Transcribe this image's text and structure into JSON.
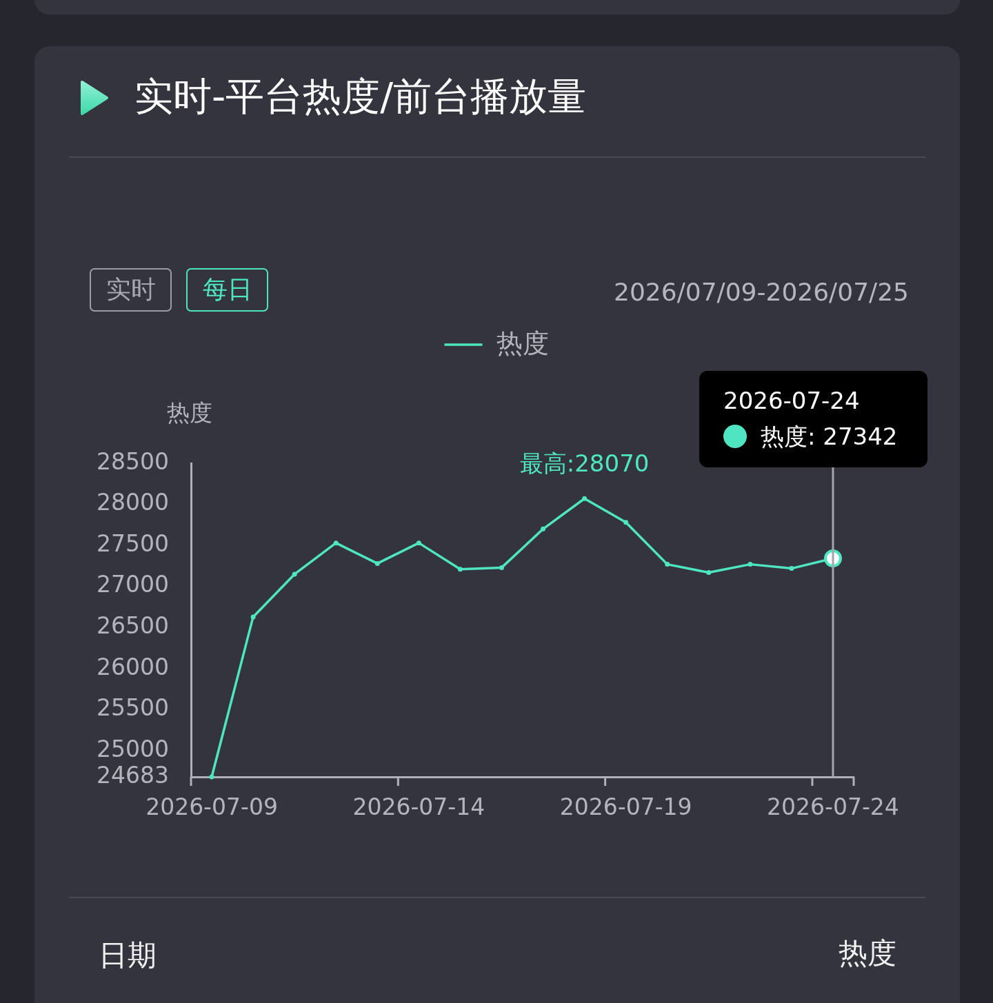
{
  "chart_data": {
    "type": "line",
    "title": "实时-平台热度/前台播放量",
    "subtitle": "2026/07/09-2026/07/25",
    "ylabel": "热度",
    "categories": [
      "2026-07-09",
      null,
      null,
      null,
      null,
      "2026-07-14",
      null,
      null,
      null,
      null,
      "2026-07-19",
      null,
      null,
      null,
      null,
      "2026-07-24"
    ],
    "series": [
      {
        "name": "热度",
        "color": "#4ee6c1",
        "values": [
          24683,
          26630,
          27150,
          27530,
          27280,
          27530,
          27210,
          27230,
          27700,
          28070,
          27780,
          27270,
          27170,
          27270,
          27220,
          27342
        ]
      }
    ],
    "ylim": [
      24683,
      28500
    ],
    "yticks": [
      24683,
      25000,
      25500,
      26000,
      26500,
      27000,
      27500,
      28000,
      28500
    ],
    "grid": false,
    "legend": "top",
    "marker": "circle",
    "line_style": "solid",
    "ref_lines": [
      {
        "axis": "x",
        "value": "2026-07-24",
        "color": "#a5a5ad"
      }
    ],
    "annotations": [
      "实时",
      "每日",
      {
        "text": "最高:28070",
        "y": 28070
      },
      "2026-07-24\n热度: 27342",
      "日期",
      "热度"
    ]
  }
}
